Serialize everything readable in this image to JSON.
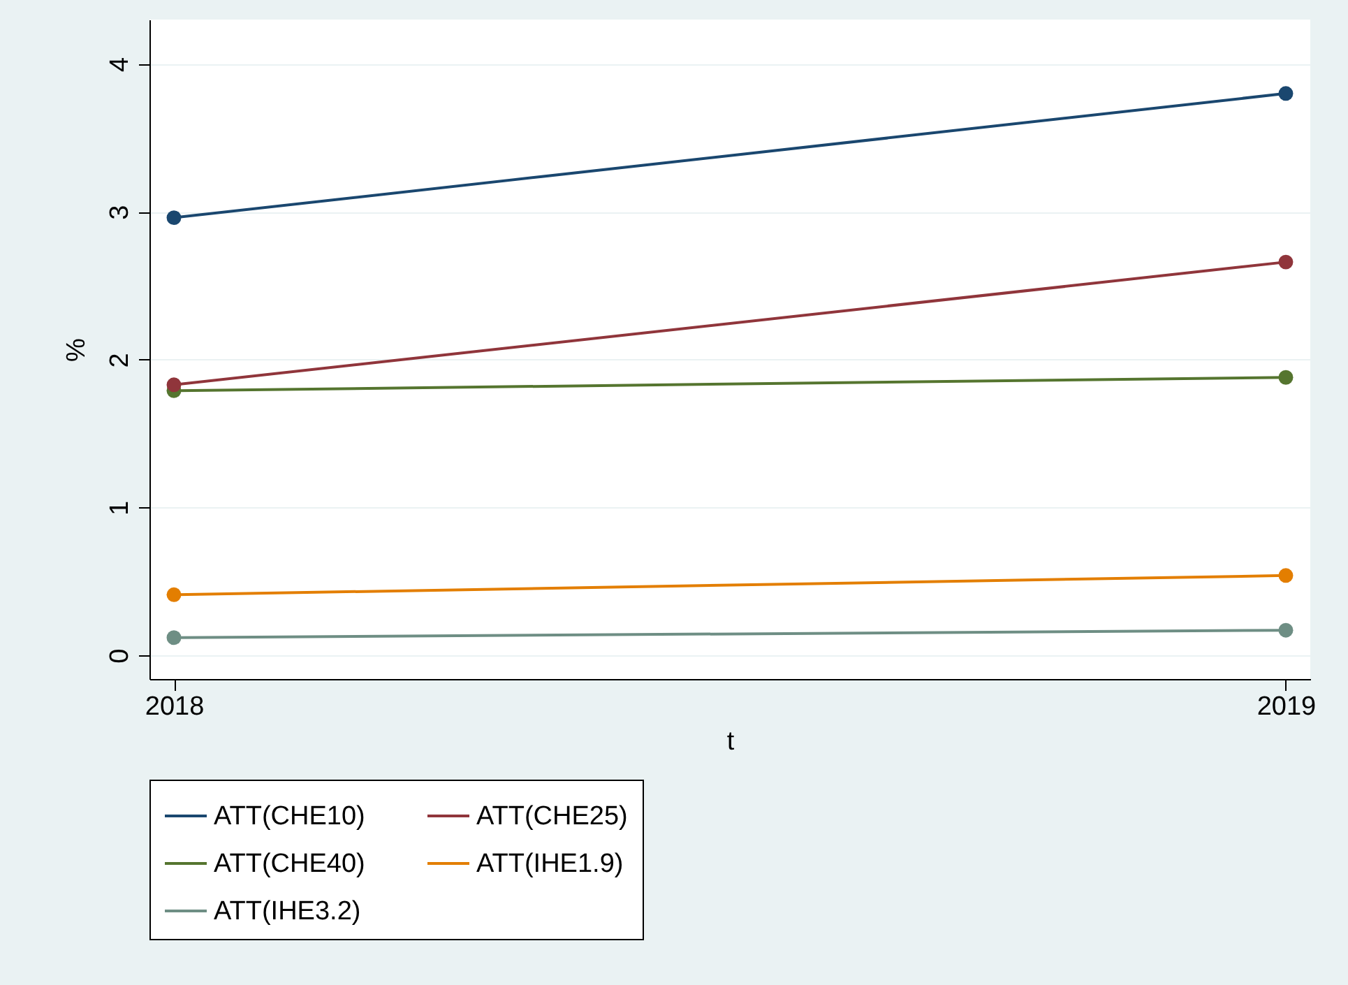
{
  "chart_data": {
    "type": "line",
    "xlabel": "t",
    "ylabel": "%",
    "x": [
      2018,
      2019
    ],
    "xlim": [
      2017.978,
      2019.022
    ],
    "xticks": [
      2018,
      2019
    ],
    "ylim": [
      -0.16,
      4.3
    ],
    "yticks": [
      0,
      1,
      2,
      3,
      4
    ],
    "grid": "y",
    "marker": "circle",
    "legend": "bottom",
    "series": [
      {
        "name": "ATT(CHE10)",
        "color": "#1a476f",
        "values": [
          2.96,
          3.8
        ]
      },
      {
        "name": "ATT(CHE25)",
        "color": "#90353b",
        "values": [
          1.83,
          2.66
        ]
      },
      {
        "name": "ATT(CHE40)",
        "color": "#55752f",
        "values": [
          1.79,
          1.88
        ]
      },
      {
        "name": "ATT(IHE1.9)",
        "color": "#e37e00",
        "values": [
          0.41,
          0.54
        ]
      },
      {
        "name": "ATT(IHE3.2)",
        "color": "#6e8e84",
        "values": [
          0.12,
          0.17
        ]
      }
    ]
  }
}
